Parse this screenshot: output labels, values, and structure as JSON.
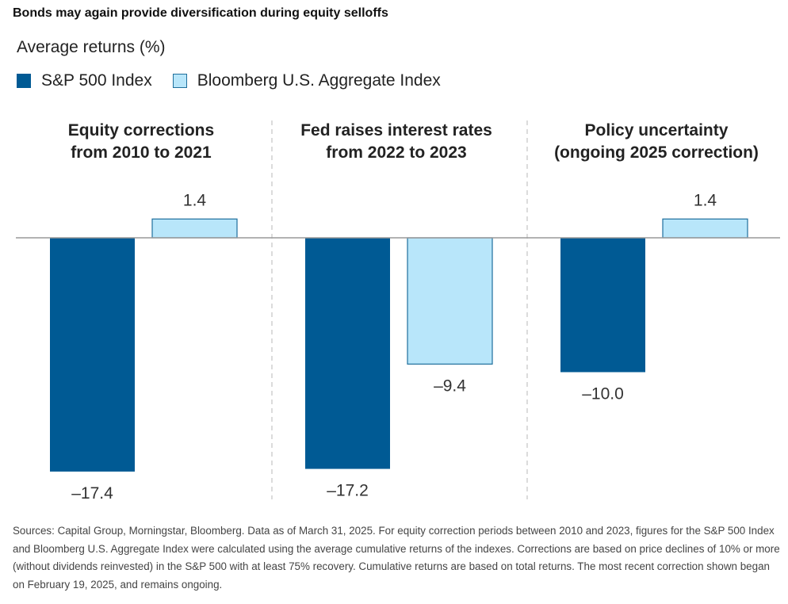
{
  "title": "Bonds may again provide diversification during equity selloffs",
  "subtitle": "Average returns (%)",
  "colors": {
    "sp500": "#005a94",
    "agg": "#b8e6fa",
    "agg_border": "#1f6f9c",
    "axis": "#999999",
    "divider": "#c8c8c8"
  },
  "legend": [
    {
      "name": "S&P 500 Index",
      "color": "#005a94"
    },
    {
      "name": "Bloomberg U.S. Aggregate Index",
      "color": "#b8e6fa"
    }
  ],
  "chart_data": {
    "type": "bar",
    "categories": [
      [
        "Equity corrections",
        "from 2010 to 2021"
      ],
      [
        "Fed raises interest rates",
        "from 2022 to 2023"
      ],
      [
        "Policy uncertainty",
        "(ongoing 2025 correction)"
      ]
    ],
    "series": [
      {
        "name": "S&P 500 Index",
        "values": [
          -17.4,
          -17.2,
          -10.0
        ],
        "labels": [
          "–17.4",
          "–17.2",
          "–10.0"
        ]
      },
      {
        "name": "Bloomberg U.S. Aggregate Index",
        "values": [
          1.4,
          -9.4,
          1.4
        ],
        "labels": [
          "1.4",
          "–9.4",
          "1.4"
        ]
      }
    ],
    "ylabel": "Average returns (%)",
    "grid": false,
    "legend_position": "top-left"
  },
  "footnote": "Sources: Capital Group, Morningstar, Bloomberg. Data as of March 31, 2025. For equity correction periods between 2010 and 2023, figures for the S&P 500 Index and Bloomberg U.S. Aggregate Index were calculated using the average cumulative returns of the indexes. Corrections are based on price declines of 10% or more (without dividends reinvested) in the S&P 500 with at least 75% recovery. Cumulative returns are based on total returns. The most recent correction shown began on February 19, 2025, and remains ongoing."
}
